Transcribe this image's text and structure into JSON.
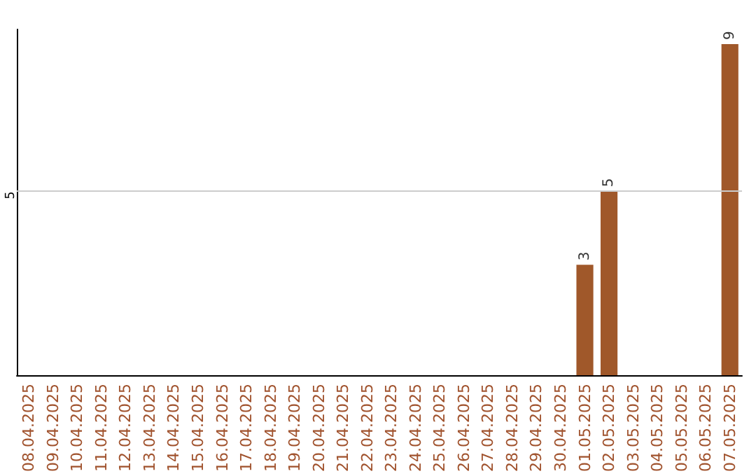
{
  "chart_data": {
    "type": "bar",
    "categories": [
      "08.04.2025",
      "09.04.2025",
      "10.04.2025",
      "11.04.2025",
      "12.04.2025",
      "13.04.2025",
      "14.04.2025",
      "15.04.2025",
      "16.04.2025",
      "17.04.2025",
      "18.04.2025",
      "19.04.2025",
      "20.04.2025",
      "21.04.2025",
      "22.04.2025",
      "23.04.2025",
      "24.04.2025",
      "25.04.2025",
      "26.04.2025",
      "27.04.2025",
      "28.04.2025",
      "29.04.2025",
      "30.04.2025",
      "01.05.2025",
      "02.05.2025",
      "03.05.2025",
      "04.05.2025",
      "05.05.2025",
      "06.05.2025",
      "07.05.2025"
    ],
    "values": [
      null,
      null,
      null,
      null,
      null,
      null,
      null,
      null,
      null,
      null,
      null,
      null,
      null,
      null,
      null,
      null,
      null,
      null,
      null,
      null,
      null,
      null,
      null,
      3,
      5,
      null,
      null,
      null,
      null,
      9
    ],
    "data_labels": true,
    "color": "#a0582a",
    "ylim": [
      0,
      9.4
    ],
    "ref_lines": [
      {
        "axis": "y",
        "value": 5,
        "label": "5",
        "color": "#cccccc"
      }
    ]
  }
}
